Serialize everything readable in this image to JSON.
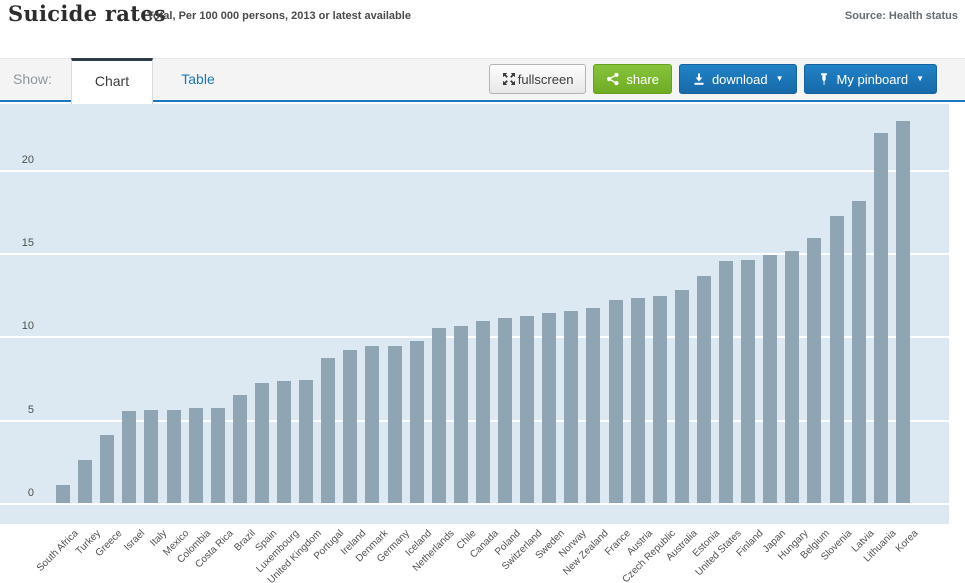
{
  "header": {
    "title": "Suicide rates",
    "subtitle": "Total, Per 100 000 persons, 2013 or latest available",
    "source": "Source: Health status"
  },
  "toolbar": {
    "show_label": "Show:",
    "tabs": [
      {
        "label": "Chart",
        "active": true
      },
      {
        "label": "Table",
        "active": false
      }
    ],
    "buttons": {
      "fullscreen": "fullscreen",
      "share": "share",
      "download": "download",
      "pinboard": "My pinboard",
      "caret": "▼"
    }
  },
  "colors": {
    "accent_blue": "#1a77bd",
    "button_green": "#76b32a",
    "bar": "#90a5b3",
    "plot_background": "#dce9f2",
    "grid": "#ffffff"
  },
  "chart_data": {
    "type": "bar",
    "title": "Suicide rates",
    "subtitle": "Total, Per 100 000 persons, 2013 or latest available",
    "ylabel": "Per 100 000 persons",
    "xlabel": "",
    "ylim": [
      0,
      25
    ],
    "yticks": [
      0,
      5,
      10,
      15,
      20
    ],
    "grid": true,
    "legend": "none",
    "categories": [
      "South Africa",
      "Turkey",
      "Greece",
      "Israel",
      "Italy",
      "Mexico",
      "Colombia",
      "Costa Rica",
      "Brazil",
      "Spain",
      "Luxembourg",
      "United Kingdom",
      "Portugal",
      "Ireland",
      "Denmark",
      "Germany",
      "Iceland",
      "Netherlands",
      "Chile",
      "Canada",
      "Poland",
      "Switzerland",
      "Sweden",
      "Norway",
      "New Zealand",
      "France",
      "Austria",
      "Czech Republic",
      "Australia",
      "Estonia",
      "United States",
      "Finland",
      "Japan",
      "Hungary",
      "Belgium",
      "Slovenia",
      "Latvia",
      "Lithuania",
      "Korea"
    ],
    "values": [
      1.1,
      2.6,
      4.1,
      5.5,
      5.6,
      5.6,
      5.7,
      5.7,
      6.5,
      7.2,
      7.3,
      7.4,
      8.7,
      9.2,
      9.4,
      9.4,
      9.7,
      10.5,
      10.6,
      10.9,
      11.1,
      11.2,
      11.4,
      11.5,
      11.7,
      12.2,
      12.3,
      12.4,
      12.8,
      13.6,
      14.5,
      14.6,
      14.9,
      15.1,
      15.9,
      17.2,
      18.1,
      22.2,
      22.9
    ]
  }
}
